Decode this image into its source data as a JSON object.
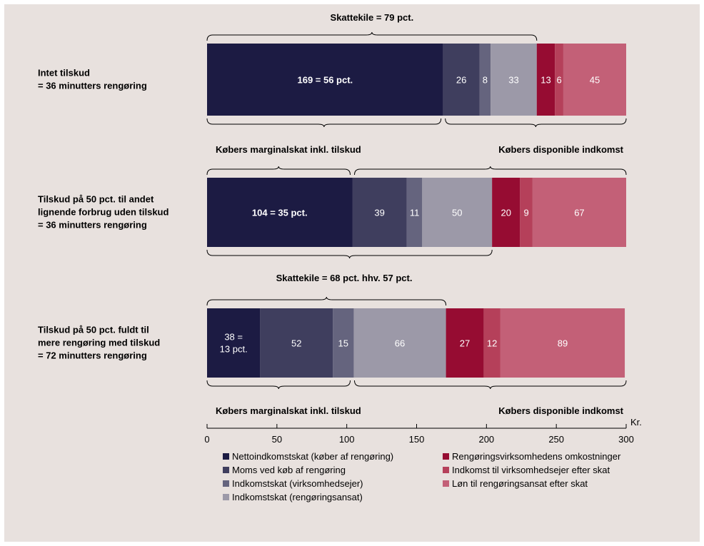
{
  "chart_data": {
    "type": "bar",
    "orientation": "horizontal",
    "stacked": true,
    "x_unit": "Kr.",
    "xlim": [
      0,
      300
    ],
    "x_ticks": [
      0,
      50,
      100,
      150,
      200,
      250,
      300
    ],
    "grid": false,
    "legend_position": "bottom",
    "categories": [
      [
        "Intet tilskud",
        "= 36 minutters rengøring"
      ],
      [
        "Tilskud på 50 pct. til andet",
        "lignende forbrug uden tilskud",
        "= 36 minutters rengøring"
      ],
      [
        "Tilskud på 50 pct. fuldt til",
        "mere rengøring med tilskud",
        "= 72 minutters rengøring"
      ]
    ],
    "series": [
      {
        "name": "Nettoindkomstskat (køber af rengøring)",
        "color": "#1c1b43",
        "values": [
          169,
          104,
          38
        ]
      },
      {
        "name": "Moms ved køb af rengøring",
        "color": "#3f3e5e",
        "values": [
          26,
          39,
          52
        ]
      },
      {
        "name": "Indkomstskat (virksomhedsejer)",
        "color": "#65647e",
        "values": [
          8,
          11,
          15
        ]
      },
      {
        "name": "Indkomstskat (rengøringsansat)",
        "color": "#9c99a8",
        "values": [
          33,
          50,
          66
        ]
      },
      {
        "name": "Rengøringsvirksomhedens omkostninger",
        "color": "#960c32",
        "values": [
          13,
          20,
          27
        ]
      },
      {
        "name": "Indkomst til virksomhedsejer efter skat",
        "color": "#b5405a",
        "values": [
          6,
          9,
          12
        ]
      },
      {
        "name": "Løn til rengøringsansat efter skat",
        "color": "#c36077",
        "values": [
          45,
          67,
          89
        ]
      }
    ],
    "segment_labels": [
      [
        "169 = 56 pct.",
        "26",
        "8",
        "33",
        "13",
        "6",
        "45"
      ],
      [
        "104 = 35 pct.",
        "39",
        "11",
        "50",
        "20",
        "9",
        "67"
      ],
      [
        [
          "38 =",
          "13 pct."
        ],
        "52",
        "15",
        "66",
        "27",
        "12",
        "89"
      ]
    ],
    "annotations": [
      {
        "text": "Skattekile = 79 pct.",
        "from": 0,
        "to": 236,
        "row": 0,
        "side": "above"
      },
      {
        "text": "Købers marginalskat inkl. tilskud",
        "from": 0,
        "to": 169,
        "row": 0,
        "side": "below"
      },
      {
        "text": "Købers disponible indkomst",
        "from": 169,
        "to": 300,
        "row": 0,
        "side": "below"
      },
      {
        "text": "Købers marginalskat inkl. tilskud",
        "from": 0,
        "to": 104,
        "row": 1,
        "side": "above"
      },
      {
        "text": "Købers disponible indkomst",
        "from": 104,
        "to": 300,
        "row": 1,
        "side": "above"
      },
      {
        "text": "Skattekile = 68 pct. hhv. 57 pct.",
        "from": 0,
        "to": 204,
        "row": 1,
        "side": "below"
      },
      {
        "text": "Skattekile = 68 pct. hhv. 57 pct.",
        "from": 0,
        "to": 171,
        "row": 2,
        "side": "above"
      },
      {
        "text": "Købers marginalskat inkl. tilskud",
        "from": 0,
        "to": 104,
        "row": 2,
        "side": "below"
      },
      {
        "text": "Købers disponible indkomst",
        "from": 104,
        "to": 300,
        "row": 2,
        "side": "below"
      }
    ]
  }
}
